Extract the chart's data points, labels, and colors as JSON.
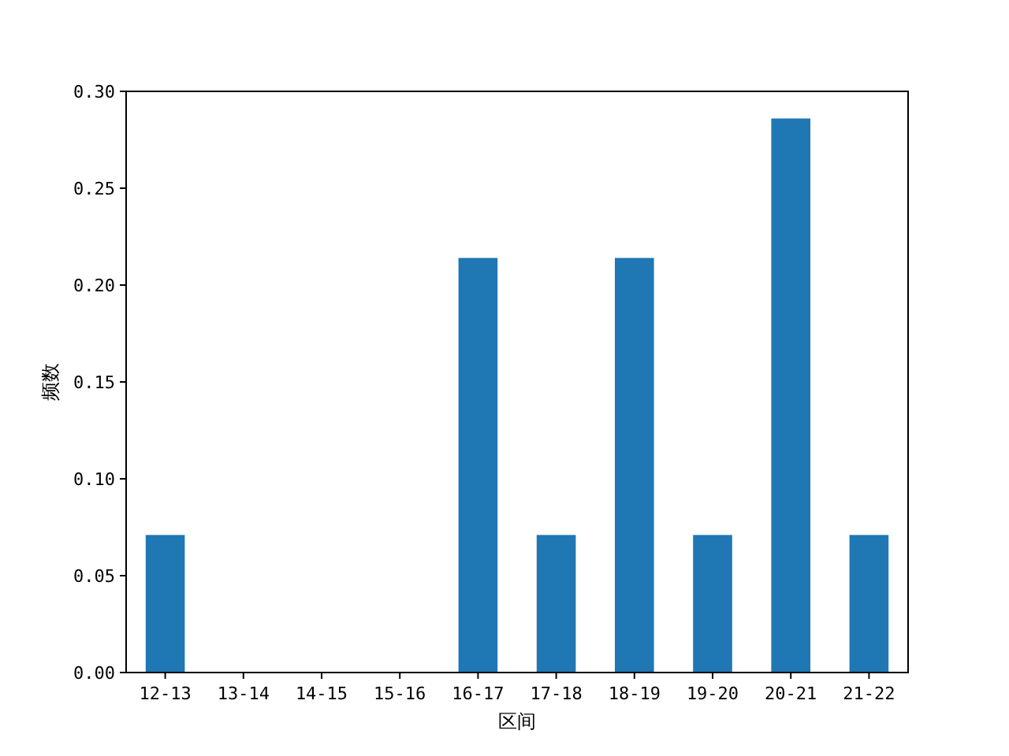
{
  "chart_data": {
    "type": "bar",
    "xlabel": "区间",
    "ylabel": "频数",
    "categories": [
      "12-13",
      "13-14",
      "14-15",
      "15-16",
      "16-17",
      "17-18",
      "18-19",
      "19-20",
      "20-21",
      "21-22"
    ],
    "values": [
      0.071,
      0,
      0,
      0,
      0.214,
      0.071,
      0.214,
      0.071,
      0.286,
      0.071
    ],
    "color": "#1f77b4",
    "ylim": [
      0,
      0.3
    ],
    "yticks": [
      {
        "value": 0,
        "label": "0.00"
      },
      {
        "value": 0.05,
        "label": "0.05"
      },
      {
        "value": 0.1,
        "label": "0.10"
      },
      {
        "value": 0.15,
        "label": "0.15"
      },
      {
        "value": 0.2,
        "label": "0.20"
      },
      {
        "value": 0.25,
        "label": "0.25"
      },
      {
        "value": 0.3,
        "label": "0.30"
      }
    ],
    "grid": false
  }
}
